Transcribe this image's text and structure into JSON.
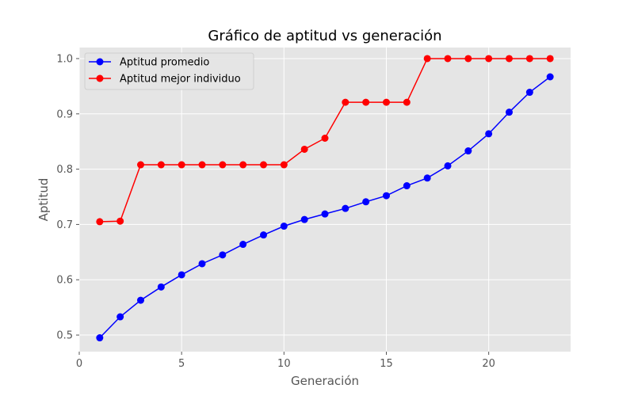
{
  "chart_data": {
    "type": "line",
    "title": "Gráfico de aptitud vs generación",
    "xlabel": "Generación",
    "ylabel": "Aptitud",
    "xlim": [
      0,
      24
    ],
    "ylim": [
      0.47,
      1.02
    ],
    "xticks": [
      0,
      5,
      10,
      15,
      20
    ],
    "yticks": [
      0.5,
      0.6,
      0.7,
      0.8,
      0.9,
      1.0
    ],
    "grid": true,
    "legend_position": "top-left",
    "x": [
      1,
      2,
      3,
      4,
      5,
      6,
      7,
      8,
      9,
      10,
      11,
      12,
      13,
      14,
      15,
      16,
      17,
      18,
      19,
      20,
      21,
      22,
      23
    ],
    "series": [
      {
        "name": "Aptitud promedio",
        "color": "#0000ff",
        "marker": "circle",
        "values": [
          0.495,
          0.533,
          0.563,
          0.587,
          0.609,
          0.629,
          0.645,
          0.664,
          0.681,
          0.697,
          0.709,
          0.719,
          0.729,
          0.741,
          0.752,
          0.77,
          0.784,
          0.806,
          0.833,
          0.864,
          0.903,
          0.939,
          0.967
        ]
      },
      {
        "name": "Aptitud mejor individuo",
        "color": "#ff0000",
        "marker": "circle",
        "values": [
          0.705,
          0.706,
          0.808,
          0.808,
          0.808,
          0.808,
          0.808,
          0.808,
          0.808,
          0.808,
          0.836,
          0.856,
          0.921,
          0.921,
          0.921,
          0.921,
          1.0,
          1.0,
          1.0,
          1.0,
          1.0,
          1.0,
          1.0
        ]
      }
    ]
  }
}
